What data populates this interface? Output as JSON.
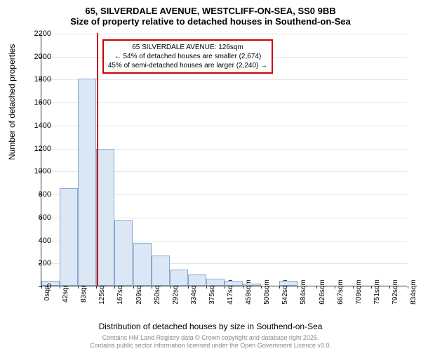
{
  "title_line1": "65, SILVERDALE AVENUE, WESTCLIFF-ON-SEA, SS0 9BB",
  "title_line2": "Size of property relative to detached houses in Southend-on-Sea",
  "ylabel": "Number of detached properties",
  "xlabel": "Distribution of detached houses by size in Southend-on-Sea",
  "footer_line1": "Contains HM Land Registry data © Crown copyright and database right 2025.",
  "footer_line2": "Contains public sector information licensed under the Open Government Licence v3.0.",
  "chart": {
    "type": "histogram",
    "y_max": 2200,
    "y_ticks": [
      0,
      200,
      400,
      600,
      800,
      1000,
      1200,
      1400,
      1600,
      1800,
      2000,
      2200
    ],
    "x_categories": [
      "0sqm",
      "42sqm",
      "83sqm",
      "125sqm",
      "167sqm",
      "209sqm",
      "250sqm",
      "292sqm",
      "334sqm",
      "375sqm",
      "417sqm",
      "459sqm",
      "500sqm",
      "542sqm",
      "584sqm",
      "626sqm",
      "667sqm",
      "709sqm",
      "751sqm",
      "792sqm",
      "834sqm"
    ],
    "bar_values": [
      40,
      850,
      1800,
      1190,
      570,
      370,
      260,
      140,
      95,
      60,
      40,
      20,
      0,
      40,
      0,
      0,
      0,
      0,
      0,
      0
    ],
    "bar_fill": "#dbe7f5",
    "bar_stroke": "#8ca9cc",
    "bar_width_ratio": 1.0,
    "marker_position_ratio": 0.151,
    "marker_color": "#cc0000",
    "grid_color": "#e5e5e5",
    "background_color": "#ffffff",
    "axis_fontsize": 11,
    "label_fontsize": 12,
    "title_fontsize": 13
  },
  "annotation": {
    "line1": "65 SILVERDALE AVENUE: 126sqm",
    "line2": "← 54% of detached houses are smaller (2,674)",
    "line3": "45% of semi-detached houses are larger (2,240) →",
    "border_color": "#cc0000"
  }
}
